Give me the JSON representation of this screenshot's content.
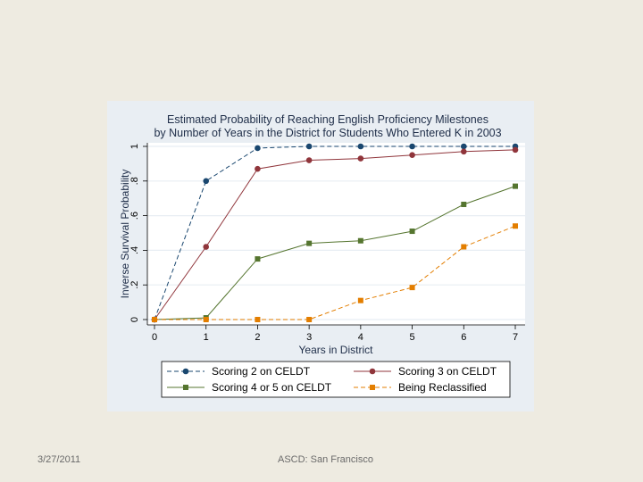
{
  "slide": {
    "footer_date": "3/27/2011",
    "footer_event": "ASCD: San Francisco"
  },
  "chart_data": {
    "type": "line",
    "title": "Estimated Probability of Reaching English Proficiency Milestones",
    "subtitle": "by Number of Years in the District for Students Who Entered K in 2003",
    "xlabel": "Years in District",
    "ylabel": "Inverse Survival Probability",
    "x": [
      0,
      1,
      2,
      3,
      4,
      5,
      6,
      7
    ],
    "xlim": [
      0,
      7
    ],
    "ylim": [
      0,
      1
    ],
    "x_ticks": [
      "0",
      "1",
      "2",
      "3",
      "4",
      "5",
      "6",
      "7"
    ],
    "y_ticks": [
      "0",
      ".2",
      ".4",
      ".6",
      ".8",
      "1"
    ],
    "grid": true,
    "legend_position": "bottom",
    "series": [
      {
        "name": "Scoring 2 on CELDT",
        "color": "#1a476f",
        "line": "dashed",
        "values": [
          0,
          0.8,
          0.99,
          1.0,
          1.0,
          1.0,
          1.0,
          1.0
        ]
      },
      {
        "name": "Scoring 3 on CELDT",
        "color": "#90353b",
        "line": "solid",
        "values": [
          0,
          0.42,
          0.87,
          0.92,
          0.93,
          0.95,
          0.97,
          0.98
        ]
      },
      {
        "name": "Scoring 4 or 5 on CELDT",
        "color": "#55752f",
        "line": "solid",
        "values": [
          0,
          0.01,
          0.35,
          0.44,
          0.455,
          0.51,
          0.665,
          0.77
        ]
      },
      {
        "name": "Being Reclassified",
        "color": "#e37e00",
        "line": "dashed",
        "values": [
          0,
          0,
          0,
          0,
          0.11,
          0.185,
          0.42,
          0.54
        ]
      }
    ]
  }
}
